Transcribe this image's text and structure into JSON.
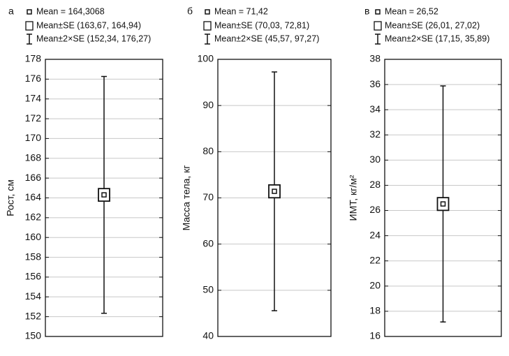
{
  "chart_data": [
    {
      "type": "errorbox",
      "panel_label": "а",
      "legend": [
        "Mean = 164,3068",
        "Mean±SE (163,67, 164,94)",
        "Mean±2×SE (152,34, 176,27)"
      ],
      "ylabel": "Рост, см",
      "mean": 164.3068,
      "se": [
        163.67,
        164.94
      ],
      "se2": [
        152.34,
        176.27
      ],
      "ylim": [
        150,
        178
      ],
      "yticks": [
        150,
        152,
        154,
        156,
        158,
        160,
        162,
        164,
        166,
        168,
        170,
        172,
        174,
        176,
        178
      ],
      "grid": true
    },
    {
      "type": "errorbox",
      "panel_label": "б",
      "legend": [
        "Mean = 71,42",
        "Mean±SE (70,03, 72,81)",
        "Mean±2×SE (45,57, 97,27)"
      ],
      "ylabel": "Масса тела, кг",
      "mean": 71.42,
      "se": [
        70.03,
        72.81
      ],
      "se2": [
        45.57,
        97.27
      ],
      "ylim": [
        40,
        100
      ],
      "yticks": [
        40,
        50,
        60,
        70,
        80,
        90,
        100
      ],
      "grid": true
    },
    {
      "type": "errorbox",
      "panel_label": "в",
      "legend": [
        "Mean = 26,52",
        "Mean±SE (26,01, 27,02)",
        "Mean±2×SE (17,15, 35,89)"
      ],
      "ylabel": "ИМТ, кг/м²",
      "mean": 26.52,
      "se": [
        26.01,
        27.02
      ],
      "se2": [
        17.15,
        35.89
      ],
      "ylim": [
        16,
        38
      ],
      "yticks": [
        16,
        18,
        20,
        22,
        24,
        26,
        28,
        30,
        32,
        34,
        36,
        38
      ],
      "grid": true
    }
  ]
}
